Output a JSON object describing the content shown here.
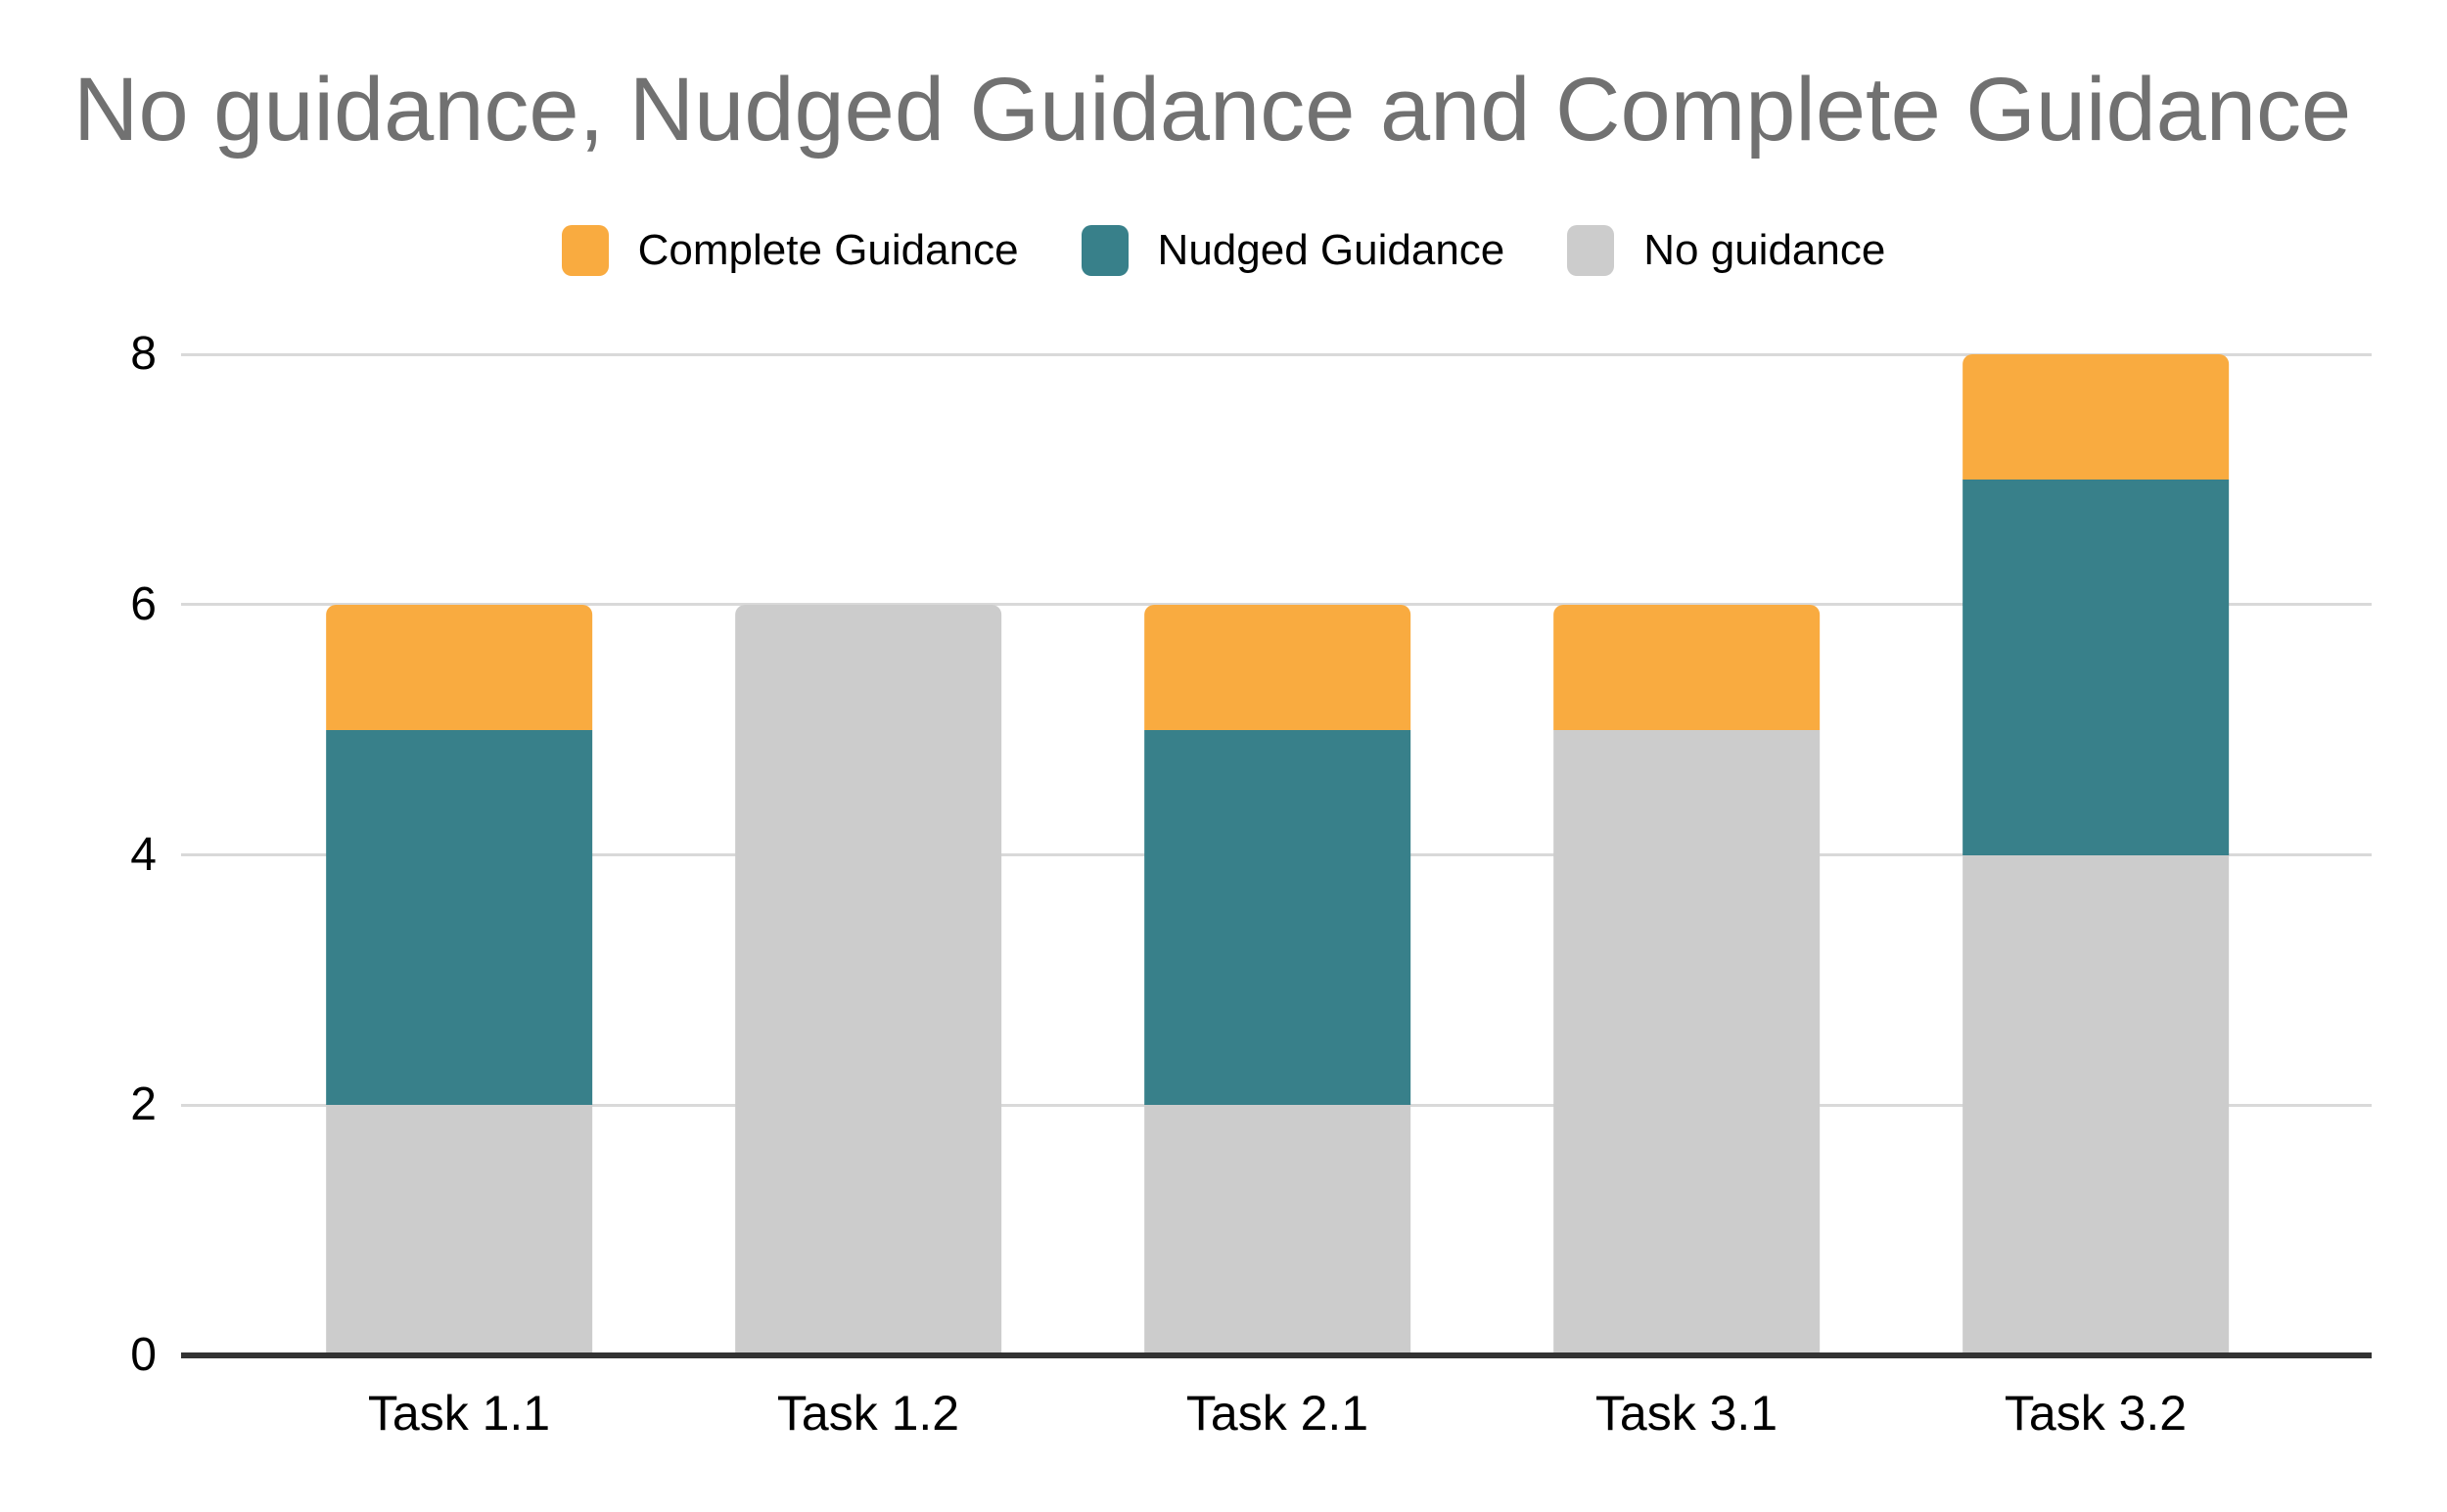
{
  "page": {
    "background": "#FFFFFF"
  },
  "chart_data": {
    "type": "bar",
    "stacked": true,
    "title": "No guidance, Nudged Guidance and Complete Guidance",
    "title_color": "#717171",
    "categories": [
      "Task 1.1",
      "Task 1.2",
      "Task 2.1",
      "Task 3.1",
      "Task 3.2"
    ],
    "series": [
      {
        "name": "No guidance",
        "color": "#CCCCCC",
        "values": [
          2,
          6,
          2,
          5,
          4
        ]
      },
      {
        "name": "Nudged Guidance",
        "color": "#38808A",
        "values": [
          3,
          0,
          3,
          0,
          3
        ]
      },
      {
        "name": "Complete Guidance",
        "color": "#F9AB40",
        "values": [
          1,
          0,
          1,
          1,
          1
        ]
      }
    ],
    "stack_totals": [
      6,
      6,
      6,
      6,
      8
    ],
    "legend": [
      "Complete Guidance",
      "Nudged Guidance",
      "No guidance"
    ],
    "legend_position": "top",
    "xlabel": "",
    "ylabel": "",
    "ylim": [
      0,
      8
    ],
    "yticks": [
      0,
      2,
      4,
      6,
      8
    ],
    "grid": true,
    "gridline_color": "#D9D9D9",
    "axis_line_color": "#333333"
  }
}
